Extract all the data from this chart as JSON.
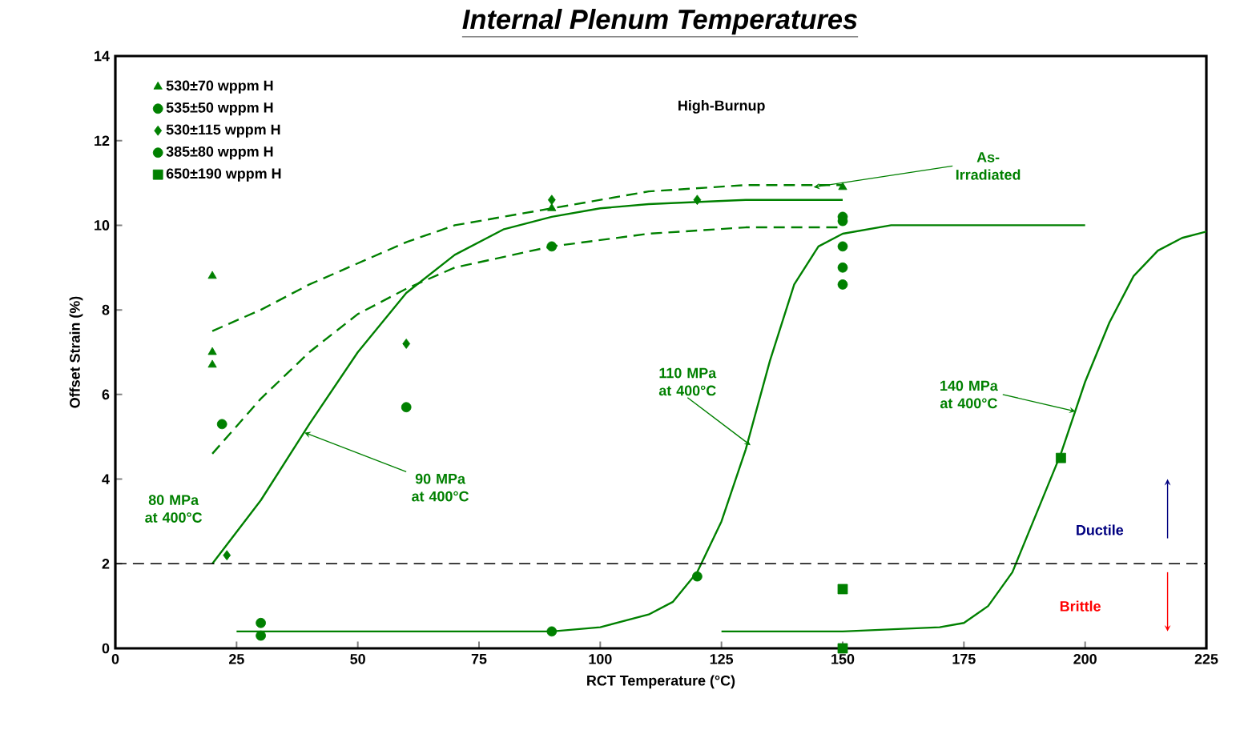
{
  "chart_data": {
    "type": "scatter",
    "title": "Internal Plenum Temperatures",
    "xlabel": "RCT Temperature (°C)",
    "ylabel": "Offset Strain (%)",
    "xlim": [
      0,
      225
    ],
    "xticks": [
      0,
      25,
      50,
      75,
      100,
      125,
      150,
      175,
      200,
      225
    ],
    "ylim": [
      0,
      14
    ],
    "yticks": [
      0,
      2,
      4,
      6,
      8,
      10,
      12,
      14
    ],
    "legend": "top left",
    "grid": false,
    "series": [
      {
        "name": "530±70 wppm H",
        "marker": "triangle",
        "color": "#008000",
        "x": [
          20,
          20,
          20,
          90,
          150
        ],
        "values": [
          8.8,
          7.0,
          6.7,
          10.4,
          10.9
        ]
      },
      {
        "name": "535±50 wppm H",
        "marker": "circle",
        "color": "#008000",
        "x": [
          22,
          60,
          90,
          150
        ],
        "values": [
          5.3,
          5.7,
          9.5,
          10.1
        ]
      },
      {
        "name": "530±115 wppm H",
        "marker": "diamond",
        "color": "#008000",
        "x": [
          23,
          60,
          90,
          120
        ],
        "values": [
          2.2,
          7.2,
          10.6,
          10.6
        ]
      },
      {
        "name": "385±80 wppm H",
        "marker": "circle",
        "color": "#008000",
        "x": [
          30,
          30,
          90,
          120,
          150,
          150,
          150,
          150
        ],
        "values": [
          0.6,
          0.3,
          0.4,
          1.7,
          10.2,
          9.5,
          9.0,
          8.6
        ]
      },
      {
        "name": "650±190 wppm H",
        "marker": "square",
        "color": "#008000",
        "x": [
          150,
          150,
          195
        ],
        "values": [
          1.4,
          0.0,
          4.5
        ]
      },
      {
        "type": "line",
        "line_style": "dashed",
        "color": "#008000",
        "x": [
          20,
          30,
          40,
          50,
          60,
          70,
          90,
          110,
          130,
          150
        ],
        "values": [
          7.5,
          8.0,
          8.6,
          9.1,
          9.6,
          10.0,
          10.4,
          10.8,
          10.95,
          10.95
        ]
      },
      {
        "type": "line",
        "line_style": "dashed",
        "color": "#008000",
        "x": [
          20,
          30,
          40,
          50,
          60,
          70,
          90,
          110,
          130,
          150
        ],
        "values": [
          4.6,
          5.9,
          7.0,
          7.9,
          8.5,
          9.0,
          9.5,
          9.8,
          9.95,
          9.95
        ]
      },
      {
        "type": "line",
        "line_style": "solid",
        "color": "#008000",
        "x": [
          20,
          30,
          40,
          50,
          60,
          70,
          80,
          90,
          100,
          110,
          130,
          150
        ],
        "values": [
          2.0,
          3.5,
          5.3,
          7.0,
          8.4,
          9.3,
          9.9,
          10.2,
          10.4,
          10.5,
          10.6,
          10.6
        ]
      },
      {
        "type": "line",
        "line_style": "solid",
        "color": "#008000",
        "x": [
          25,
          90,
          100,
          110,
          115,
          120,
          125,
          130,
          135,
          140,
          145,
          150,
          160,
          200
        ],
        "values": [
          0.4,
          0.4,
          0.5,
          0.8,
          1.1,
          1.8,
          3.0,
          4.7,
          6.8,
          8.6,
          9.5,
          9.8,
          10.0,
          10.0
        ]
      },
      {
        "type": "line",
        "line_style": "solid",
        "color": "#008000",
        "x": [
          125,
          150,
          170,
          175,
          180,
          185,
          190,
          195,
          200,
          205,
          210,
          215,
          220,
          225
        ],
        "values": [
          0.4,
          0.4,
          0.5,
          0.6,
          1.0,
          1.8,
          3.2,
          4.6,
          6.3,
          7.7,
          8.8,
          9.4,
          9.7,
          9.85
        ]
      }
    ],
    "ref_lines": [
      {
        "axis": "y",
        "value": 2,
        "color": "#000000",
        "line_style": "dashed"
      }
    ],
    "annotations": [
      "High-Burnup",
      {
        "text": "As-Irradiated",
        "x": 144,
        "y": 10.9
      },
      "80 MPa at 400°C",
      {
        "text": "90 MPa at 400°C",
        "x": 39,
        "y": 5.1
      },
      {
        "text": "110 MPa at 400°C",
        "x": 131,
        "y": 4.8
      },
      {
        "text": "140 MPa at 400°C",
        "x": 198,
        "y": 5.6
      },
      "Ductile",
      "Brittle"
    ]
  }
}
